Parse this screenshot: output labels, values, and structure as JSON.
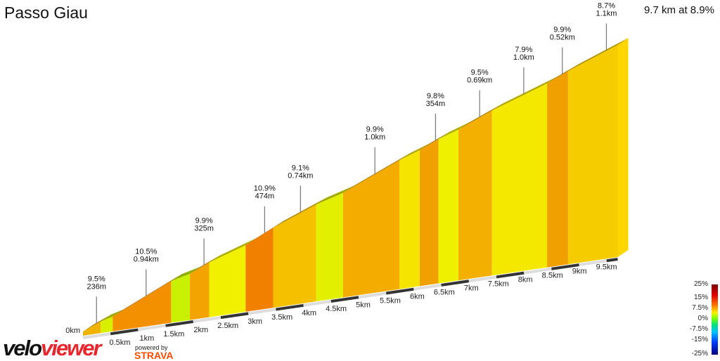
{
  "title": "Passo Giau",
  "summary": "9.7 km at 8.9%",
  "chart_data": {
    "type": "area",
    "total_km": 9.7,
    "segments": [
      {
        "from": 0,
        "to": 0.32,
        "gradient": 9.5,
        "color": "#f0b400"
      },
      {
        "from": 0.32,
        "to": 0.54,
        "gradient": 6.0,
        "color": "#d8f000"
      },
      {
        "from": 0.54,
        "to": 1.6,
        "gradient": 10.5,
        "color": "#f29000"
      },
      {
        "from": 1.6,
        "to": 1.94,
        "gradient": 5.5,
        "color": "#c8f000"
      },
      {
        "from": 1.94,
        "to": 2.29,
        "gradient": 10.0,
        "color": "#f4a400"
      },
      {
        "from": 2.29,
        "to": 2.95,
        "gradient": 7.5,
        "color": "#f0f000"
      },
      {
        "from": 2.95,
        "to": 3.45,
        "gradient": 11.0,
        "color": "#f28000"
      },
      {
        "from": 3.45,
        "to": 4.23,
        "gradient": 9.0,
        "color": "#f4c000"
      },
      {
        "from": 4.23,
        "to": 4.72,
        "gradient": 6.5,
        "color": "#e2f000"
      },
      {
        "from": 4.72,
        "to": 5.74,
        "gradient": 9.9,
        "color": "#f4ac00"
      },
      {
        "from": 5.74,
        "to": 6.11,
        "gradient": 8.0,
        "color": "#f4e400"
      },
      {
        "from": 6.11,
        "to": 6.45,
        "gradient": 10.0,
        "color": "#f0a000"
      },
      {
        "from": 6.45,
        "to": 6.81,
        "gradient": 7.5,
        "color": "#eef000"
      },
      {
        "from": 6.81,
        "to": 7.42,
        "gradient": 9.5,
        "color": "#f4b000"
      },
      {
        "from": 7.42,
        "to": 8.42,
        "gradient": 7.9,
        "color": "#f4e800"
      },
      {
        "from": 8.42,
        "to": 8.8,
        "gradient": 10.0,
        "color": "#f0a000"
      },
      {
        "from": 8.8,
        "to": 9.7,
        "gradient": 8.7,
        "color": "#f4cc00"
      }
    ],
    "annotations": [
      {
        "km": 0.15,
        "gradient": "9.5%",
        "length": "236m"
      },
      {
        "km": 1.05,
        "gradient": "10.5%",
        "length": "0.94km"
      },
      {
        "km": 2.1,
        "gradient": "9.9%",
        "length": "325m"
      },
      {
        "km": 3.2,
        "gradient": "10.9%",
        "length": "474m"
      },
      {
        "km": 3.85,
        "gradient": "9.1%",
        "length": "0.74km"
      },
      {
        "km": 5.2,
        "gradient": "9.9%",
        "length": "1.0km"
      },
      {
        "km": 6.3,
        "gradient": "9.8%",
        "length": "354m"
      },
      {
        "km": 7.1,
        "gradient": "9.5%",
        "length": "0.69km"
      },
      {
        "km": 7.9,
        "gradient": "7.9%",
        "length": "1.0km"
      },
      {
        "km": 8.6,
        "gradient": "9.9%",
        "length": "0.52km"
      },
      {
        "km": 9.4,
        "gradient": "8.7%",
        "length": "1.1km"
      }
    ],
    "x_ticks": [
      "0km",
      "0.5km",
      "1km",
      "1.5km",
      "2km",
      "2.5km",
      "3km",
      "3.5km",
      "4km",
      "4.5km",
      "5km",
      "5.5km",
      "6km",
      "6.5km",
      "7km",
      "7.5km",
      "8km",
      "8.5km",
      "9km",
      "9.5km"
    ],
    "legend": {
      "labels": [
        "25%",
        "15%",
        "7.5%",
        "0%",
        "-7.5%",
        "-15%",
        "-25%"
      ],
      "placement": "bottom-right"
    }
  },
  "logo": {
    "velo": "velo",
    "viewer": "viewer",
    "powered_by": "powered by",
    "strava": "STRAVA"
  }
}
